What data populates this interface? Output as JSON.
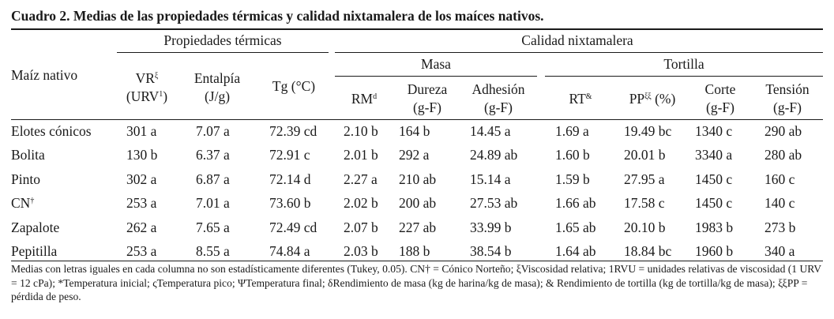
{
  "caption": "Cuadro 2. Medias de las propiedades térmicas y calidad nixtamalera de los maíces nativos.",
  "header": {
    "group_thermal": "Propiedades térmicas",
    "group_quality": "Calidad nixtamalera",
    "sub_masa": "Masa",
    "sub_tortilla": "Tortilla",
    "col_maiz": "Maíz nativo",
    "col_vr": "VR",
    "col_vr_sup": "ξ",
    "col_vr_unit": "(URV",
    "col_vr_unit_sup": "1",
    "col_vr_unit_end": ")",
    "col_entalpia": "Entalpía",
    "col_entalpia_unit": "(J/g)",
    "col_tg": "Tg (°C)",
    "col_rm": "RM",
    "col_rm_sup": "d",
    "col_dureza": "Dureza",
    "col_dureza_unit": "(g-F)",
    "col_adhesion": "Adhesión",
    "col_adhesion_unit": "(g-F)",
    "col_rt": "RT",
    "col_rt_sup": "&",
    "col_pp": "PP",
    "col_pp_sup": "ξξ",
    "col_pp_unit": " (%)",
    "col_corte": "Corte",
    "col_corte_unit": "(g-F)",
    "col_tension": "Tensión",
    "col_tension_unit": "(g-F)"
  },
  "rows": [
    {
      "name": "Elotes cónicos",
      "name_sup": "",
      "vr": "301 a",
      "entalpia": "7.07 a",
      "tg": "72.39 cd",
      "rm": "2.10 b",
      "dureza": "164 b",
      "adhesion": "14.45 a",
      "rt": "1.69 a",
      "pp": "19.49 bc",
      "corte": "1340 c",
      "tension": "290 ab"
    },
    {
      "name": "Bolita",
      "name_sup": "",
      "vr": "130 b",
      "entalpia": "6.37 a",
      "tg": "72.91 c",
      "rm": "2.01 b",
      "dureza": "292 a",
      "adhesion": "24.89 ab",
      "rt": "1.60 b",
      "pp": "20.01 b",
      "corte": "3340 a",
      "tension": "280 ab"
    },
    {
      "name": "Pinto",
      "name_sup": "",
      "vr": "302 a",
      "entalpia": "6.87 a",
      "tg": "72.14 d",
      "rm": "2.27 a",
      "dureza": "210 ab",
      "adhesion": "15.14 a",
      "rt": "1.59 b",
      "pp": "27.95 a",
      "corte": "1450 c",
      "tension": "160 c"
    },
    {
      "name": "CN",
      "name_sup": "†",
      "vr": "253 a",
      "entalpia": "7.01 a",
      "tg": "73.60 b",
      "rm": "2.02 b",
      "dureza": "200 ab",
      "adhesion": "27.53 ab",
      "rt": "1.66 ab",
      "pp": "17.58 c",
      "corte": "1450 c",
      "tension": "140 c"
    },
    {
      "name": "Zapalote",
      "name_sup": "",
      "vr": "262 a",
      "entalpia": "7.65 a",
      "tg": "72.49 cd",
      "rm": "2.07 b",
      "dureza": "227 ab",
      "adhesion": "33.99 b",
      "rt": "1.65 ab",
      "pp": "20.10 b",
      "corte": "1983 b",
      "tension": "273 b"
    },
    {
      "name": "Pepitilla",
      "name_sup": "",
      "vr": "253 a",
      "entalpia": "8.55 a",
      "tg": "74.84 a",
      "rm": "2.03 b",
      "dureza": "188 b",
      "adhesion": "38.54 b",
      "rt": "1.64 ab",
      "pp": "18.84 bc",
      "corte": "1960 b",
      "tension": "340 a"
    }
  ],
  "footnote": "Medias con letras iguales en cada columna no son estadísticamente diferentes (Tukey, 0.05). CN† = Cónico Norteño; ξViscosidad relativa; 1RVU = unidades relativas de viscosidad (1 URV = 12 cPa); *Temperatura inicial; ςTemperatura pico; ΨTemperatura final; δRendimiento de masa (kg de harina/kg de masa); & Rendimiento de tortilla (kg de tortilla/kg de masa); ξξPP = pérdida de peso."
}
